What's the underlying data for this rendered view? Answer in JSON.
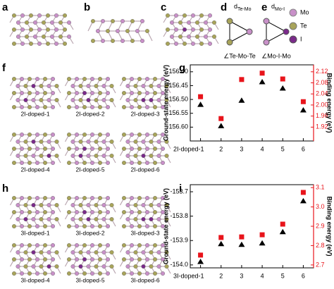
{
  "panels": {
    "a": "a",
    "b": "b",
    "c": "c",
    "d": "d",
    "e": "e",
    "f": "f",
    "h": "h"
  },
  "schematic_d": {
    "bond_main": "d",
    "bond_sub": "Te-Mo",
    "angle": "∠Te-Mo-Te"
  },
  "schematic_e": {
    "bond_main": "d",
    "bond_sub": "Mo-I",
    "angle": "∠Mo-I-Mo"
  },
  "atom_legend": [
    "Mo",
    "Te",
    "I"
  ],
  "structures_2I": [
    "2I-doped-1",
    "2I-doped-2",
    "2I-doped-3",
    "2I-doped-4",
    "2I-doped-5",
    "2I-doped-6"
  ],
  "structures_3I": [
    "3I-doped-1",
    "3I-doped-2",
    "3I-doped-3",
    "3I-doped-4",
    "3I-doped-5",
    "3I-doped-6"
  ],
  "chart_data": [
    {
      "type": "scatter",
      "panel_label": "g",
      "y_label": "Ground-state energy (eV)",
      "y2_label": "Binding energy (eV)",
      "categories": [
        "2I-doped-1",
        "2",
        "3",
        "4",
        "5",
        "6"
      ],
      "series": [
        {
          "marker": "triangle",
          "color": "#000000",
          "values": [
            -156.518,
            -156.595,
            -156.503,
            -156.436,
            -156.459,
            -156.538
          ]
        },
        {
          "marker": "square",
          "color": "#e8141b",
          "axis": "y2",
          "values": [
            2.03,
            1.951,
            2.092,
            2.115,
            2.094,
            2.012
          ]
        }
      ],
      "ylim": [
        -156.65,
        -156.375
      ],
      "yticks": [
        {
          "value": -156.4,
          "label": "-156.40"
        },
        -156.45,
        {
          "value": -156.5,
          "label": "-156.50"
        },
        -156.55,
        {
          "value": -156.6,
          "label": "-156.60"
        }
      ],
      "y2lim": [
        1.87,
        2.145
      ],
      "y2ticks": [
        2.12,
        2.08,
        2.04,
        {
          "value": 2,
          "label": "2.00"
        },
        1.96,
        1.92
      ],
      "y2_color": "#e8141b"
    },
    {
      "type": "scatter",
      "panel_label": "i",
      "y_label": "Ground-state energy (eV)",
      "y2_label": "Binding energy (eV)",
      "categories": [
        "3I-doped-1",
        "2",
        "3",
        "4",
        "5",
        "6"
      ],
      "series": [
        {
          "marker": "triangle",
          "color": "#000000",
          "values": [
            -153.986,
            -153.913,
            -153.916,
            -153.91,
            -153.864,
            -153.737
          ]
        },
        {
          "marker": "square",
          "color": "#e8141b",
          "axis": "y2",
          "values": [
            2.751,
            2.842,
            2.845,
            2.856,
            2.911,
            3.075
          ]
        }
      ],
      "ylim": [
        -154.012,
        -153.671
      ],
      "yticks": [
        -153.7,
        -153.8,
        -153.9,
        {
          "value": -154,
          "label": "-154.0"
        }
      ],
      "y2lim": [
        2.685,
        3.115
      ],
      "y2ticks": [
        {
          "value": 3.1,
          "label": "3.1"
        },
        {
          "value": 3,
          "label": "3.0"
        },
        2.9,
        2.8,
        2.7
      ],
      "y2_color": "#e8141b"
    }
  ]
}
